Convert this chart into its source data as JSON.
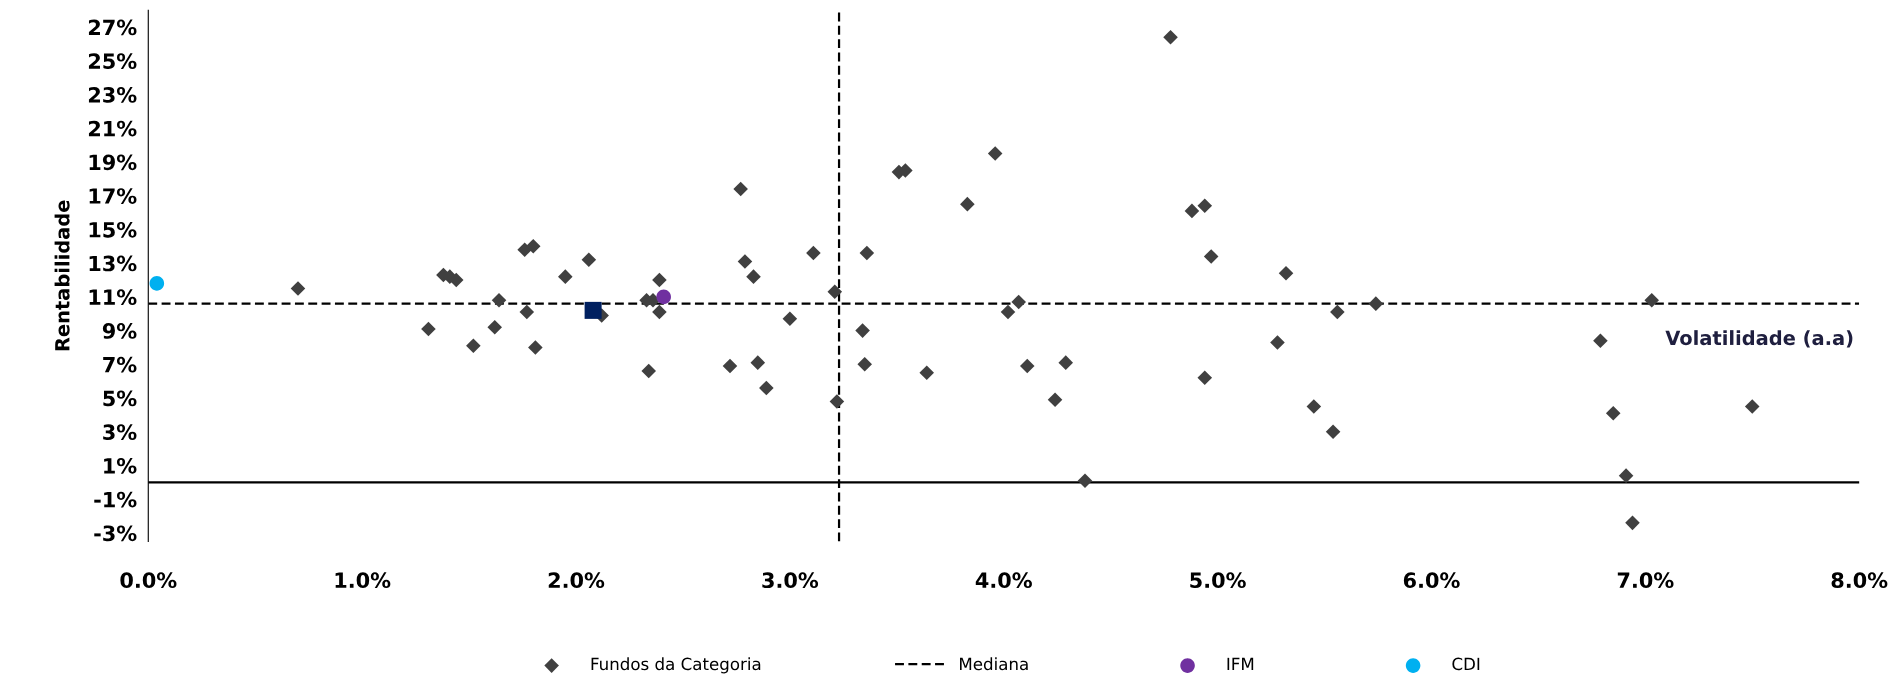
{
  "chart_data": {
    "type": "scatter",
    "xlabel": "Volatilidade (a.a)",
    "ylabel": "Rentabilidade",
    "xlim": [
      0,
      8
    ],
    "xticks": [
      {
        "value": 0,
        "label": "0.0%"
      },
      {
        "value": 1,
        "label": "1.0%"
      },
      {
        "value": 2,
        "label": "2.0%"
      },
      {
        "value": 3,
        "label": "3.0%"
      },
      {
        "value": 4,
        "label": "4.0%"
      },
      {
        "value": 5,
        "label": "5.0%"
      },
      {
        "value": 6,
        "label": "6.0%"
      },
      {
        "value": 7,
        "label": "7.0%"
      },
      {
        "value": 8,
        "label": "8.0%"
      }
    ],
    "ylim": [
      -3.5,
      28
    ],
    "yticks": [
      {
        "value": -3,
        "label": "-3%"
      },
      {
        "value": -1,
        "label": "-1%"
      },
      {
        "value": 1,
        "label": "1%"
      },
      {
        "value": 3,
        "label": "3%"
      },
      {
        "value": 5,
        "label": "5%"
      },
      {
        "value": 7,
        "label": "7%"
      },
      {
        "value": 9,
        "label": "9%"
      },
      {
        "value": 11,
        "label": "11%"
      },
      {
        "value": 13,
        "label": "13%"
      },
      {
        "value": 15,
        "label": "15%"
      },
      {
        "value": 17,
        "label": "17%"
      },
      {
        "value": 19,
        "label": "19%"
      },
      {
        "value": 21,
        "label": "21%"
      },
      {
        "value": 23,
        "label": "23%"
      },
      {
        "value": 25,
        "label": "25%"
      },
      {
        "value": 27,
        "label": "27%"
      }
    ],
    "grid": false,
    "legend": "bottom",
    "ref_lines": [
      {
        "axis": "y",
        "value": 0,
        "color": "#000000",
        "line_style": "solid"
      },
      {
        "axis": "y",
        "value": 10.6,
        "label": "Mediana",
        "color": "#000000",
        "line_style": "dashed"
      },
      {
        "axis": "x",
        "value": 3.23,
        "color": "#000000",
        "line_style": "dashed"
      }
    ],
    "series": [
      {
        "name": "Fundos da Categoria",
        "color": "#404040",
        "marker": "diamond",
        "x": [
          0.7,
          1.31,
          1.38,
          1.41,
          1.44,
          1.52,
          1.62,
          1.64,
          1.76,
          1.8,
          1.77,
          1.81,
          1.95,
          2.06,
          2.12,
          2.34,
          2.33,
          2.36,
          2.39,
          2.39,
          2.72,
          2.77,
          2.79,
          2.83,
          2.85,
          2.89,
          3.0,
          3.11,
          3.21,
          3.22,
          3.34,
          3.35,
          3.36,
          3.51,
          3.54,
          3.64,
          3.83,
          3.96,
          4.02,
          4.07,
          4.11,
          4.24,
          4.29,
          4.38,
          4.78,
          4.88,
          4.94,
          4.94,
          4.97,
          5.28,
          5.32,
          5.45,
          5.54,
          5.56,
          5.74,
          6.79,
          6.85,
          6.91,
          6.94,
          7.03,
          7.5
        ],
        "values": [
          11.5,
          9.1,
          12.3,
          12.2,
          12.0,
          8.1,
          9.2,
          10.8,
          13.8,
          14.0,
          10.1,
          8.0,
          12.2,
          13.2,
          9.9,
          6.6,
          10.8,
          10.8,
          10.1,
          12.0,
          6.9,
          17.4,
          13.1,
          12.2,
          7.1,
          5.6,
          9.7,
          13.6,
          11.3,
          4.8,
          9.0,
          7.0,
          13.6,
          18.4,
          18.5,
          6.5,
          16.5,
          19.5,
          10.1,
          10.7,
          6.9,
          4.9,
          7.1,
          0.1,
          26.4,
          16.1,
          16.4,
          6.2,
          13.4,
          8.3,
          12.4,
          4.5,
          3.0,
          10.1,
          10.6,
          8.4,
          4.1,
          0.4,
          -2.4,
          10.8,
          4.5
        ]
      },
      {
        "name": "IFM",
        "color": "#7030a0",
        "marker": "circle",
        "x": [
          2.41
        ],
        "values": [
          11.0
        ]
      },
      {
        "name": "CDI",
        "color": "#00b0f0",
        "marker": "circle",
        "x": [
          0.04
        ],
        "values": [
          11.8
        ]
      },
      {
        "color": "#002060",
        "marker": "square",
        "x": [
          2.08
        ],
        "values": [
          10.2
        ]
      }
    ]
  }
}
